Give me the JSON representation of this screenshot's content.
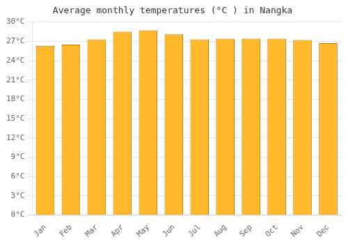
{
  "chart_data": {
    "type": "bar",
    "title": "Average monthly temperatures (°C ) in Nangka",
    "categories": [
      "Jan",
      "Feb",
      "Mar",
      "Apr",
      "May",
      "Jun",
      "Jul",
      "Aug",
      "Sep",
      "Oct",
      "Nov",
      "Dec"
    ],
    "values": [
      26.3,
      26.5,
      27.3,
      28.5,
      28.7,
      28.1,
      27.3,
      27.4,
      27.4,
      27.4,
      27.2,
      26.7
    ],
    "color": "#FFB92A",
    "ylim": [
      0,
      30
    ],
    "yticks": [
      {
        "value": 0,
        "label": "0°C"
      },
      {
        "value": 3,
        "label": "3°C"
      },
      {
        "value": 6,
        "label": "6°C"
      },
      {
        "value": 9,
        "label": "9°C"
      },
      {
        "value": 12,
        "label": "12°C"
      },
      {
        "value": 15,
        "label": "15°C"
      },
      {
        "value": 18,
        "label": "18°C"
      },
      {
        "value": 21,
        "label": "21°C"
      },
      {
        "value": 24,
        "label": "24°C"
      },
      {
        "value": 27,
        "label": "27°C"
      },
      {
        "value": 30,
        "label": "30°C"
      }
    ],
    "grid": true
  }
}
